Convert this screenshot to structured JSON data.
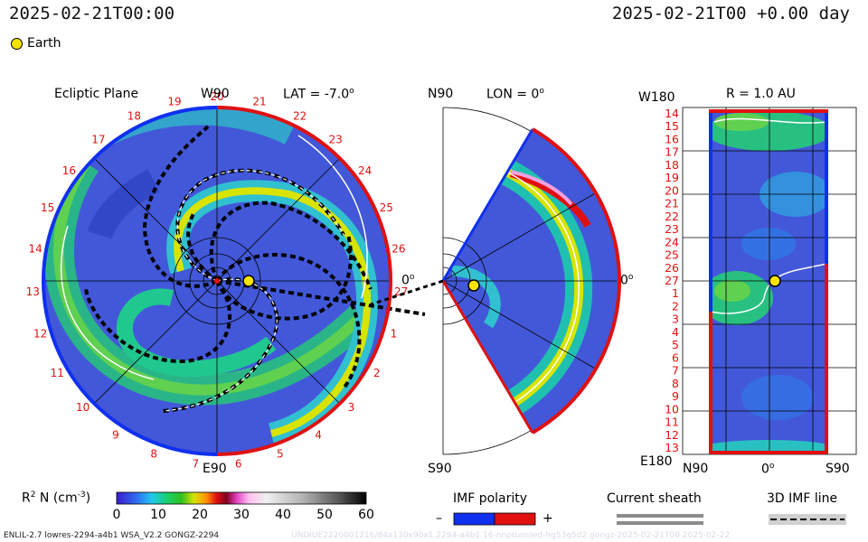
{
  "header": {
    "timestamp_left": "2025-02-21T00:00",
    "timestamp_right": "2025-02-21T00 +0.00 day"
  },
  "legend": {
    "earth_label": "Earth"
  },
  "ecliptic": {
    "title": "Ecliptic Plane",
    "top_label": "W90",
    "lat_label": "LAT = -7.0",
    "lat_sup": "o",
    "right_label": "0",
    "right_sup": "o",
    "bottom_label": "E90",
    "carrington_numbers": [
      "20",
      "21",
      "22",
      "23",
      "24",
      "25",
      "26",
      "27",
      "1",
      "2",
      "3",
      "4",
      "5",
      "6",
      "7",
      "8",
      "9",
      "10",
      "11",
      "12",
      "13",
      "14",
      "15",
      "16",
      "17",
      "18",
      "19"
    ]
  },
  "meridional": {
    "top_left": "N90",
    "lon_label": "LON = 0",
    "lon_sup": "o",
    "right_label": "0",
    "right_sup": "o",
    "bottom_left": "S90"
  },
  "radial": {
    "top_left": "W180",
    "r_label": "R = 1.0 AU",
    "bottom_left": "E180",
    "x_labels": [
      "N90",
      "0",
      "S90"
    ],
    "x_sup": "o",
    "y_labels": [
      "14",
      "15",
      "16",
      "17",
      "18",
      "19",
      "20",
      "21",
      "22",
      "23",
      "24",
      "25",
      "26",
      "27",
      "1",
      "2",
      "3",
      "4",
      "5",
      "6",
      "7",
      "8",
      "9",
      "10",
      "11",
      "12",
      "13"
    ]
  },
  "colorbar": {
    "label_main": "R",
    "label_sup": "2",
    "label_rest": " N (cm",
    "label_exp": "-3",
    "label_close": ")",
    "ticks": [
      "0",
      "10",
      "20",
      "30",
      "40",
      "50",
      "60"
    ],
    "range": [
      0,
      60
    ]
  },
  "imf_polarity": {
    "title": "IMF polarity",
    "minus": "–",
    "plus": "+"
  },
  "current_sheath": {
    "title": "Current sheath"
  },
  "imf_line": {
    "title": "3D IMF line"
  },
  "footer": {
    "left": "ENLIL-2.7 lowres-2294-a4b1 WSA_V2.2 GONGZ-2294",
    "right": "UNDIUE2220001216/84a130x90x1.2294-a4b1.16-nnptunnled-hg53q5d2.gongz-2025-02-21T00 2025-02-22"
  },
  "colors": {
    "background_density": "#3f58d6",
    "boundary_red": "#e01010",
    "boundary_blue": "#1030f0",
    "earth_fill": "#f5e400"
  },
  "chart_data": {
    "type": "heatmap",
    "title": "",
    "quantity": "R^2 N (cm^-3)",
    "colorbar_range": [
      0,
      60
    ],
    "earth_position": {
      "radial_distance_au": 1.0,
      "lat_deg": -7.0,
      "lon_deg": 0
    },
    "panels": [
      "Ecliptic Plane",
      "Meridional (LON = 0)",
      "R = 1.0 AU"
    ]
  }
}
